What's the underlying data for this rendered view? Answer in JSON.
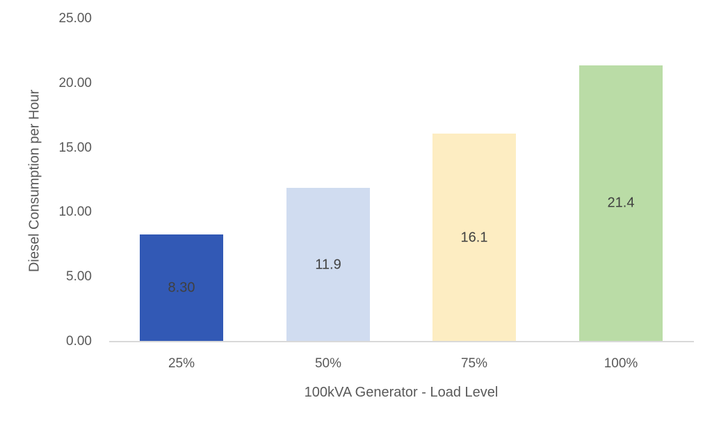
{
  "chart_data": {
    "type": "bar",
    "title": "",
    "xlabel": "100kVA Generator - Load Level",
    "ylabel": "Diesel Consumption per Hour",
    "categories": [
      "25%",
      "50%",
      "75%",
      "100%"
    ],
    "values": [
      8.3,
      11.9,
      16.1,
      21.4
    ],
    "data_labels": [
      "8.30",
      "11.9",
      "16.1",
      "21.4"
    ],
    "colors": [
      "#3259b5",
      "#d0dcf0",
      "#fdedc2",
      "#badca6"
    ],
    "ylim": [
      0,
      25
    ],
    "yticks": [
      "0.00",
      "5.00",
      "10.00",
      "15.00",
      "20.00",
      "25.00"
    ],
    "grid": false,
    "legend": null
  }
}
